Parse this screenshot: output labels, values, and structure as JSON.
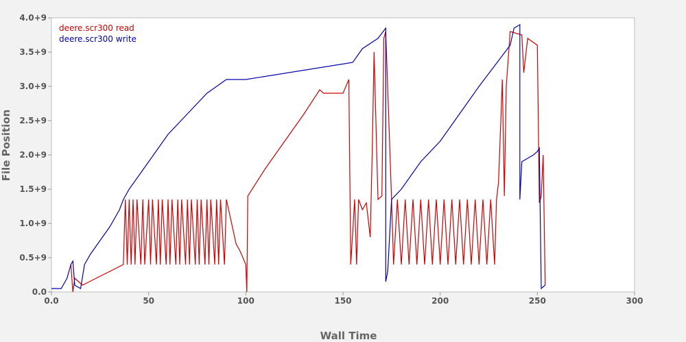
{
  "chart_data": {
    "type": "line",
    "title": "",
    "xlabel": "Wall Time",
    "ylabel": "File Position",
    "xlim": [
      0,
      300
    ],
    "ylim": [
      0,
      4000000000
    ],
    "x_ticks": [
      {
        "value": 0,
        "label": "0.0"
      },
      {
        "value": 50,
        "label": "50"
      },
      {
        "value": 100,
        "label": "100"
      },
      {
        "value": 150,
        "label": "150"
      },
      {
        "value": 200,
        "label": "200"
      },
      {
        "value": 250,
        "label": "250"
      },
      {
        "value": 300,
        "label": "300"
      }
    ],
    "y_ticks": [
      {
        "value": 0,
        "label": "0.0"
      },
      {
        "value": 500000000,
        "label": "0.5+9"
      },
      {
        "value": 1000000000,
        "label": "1.0+9"
      },
      {
        "value": 1500000000,
        "label": "1.5+9"
      },
      {
        "value": 2000000000,
        "label": "2.0+9"
      },
      {
        "value": 2500000000,
        "label": "2.5+9"
      },
      {
        "value": 3000000000,
        "label": "3.0+9"
      },
      {
        "value": 3500000000,
        "label": "3.5+9"
      },
      {
        "value": 4000000000,
        "label": "4.0+9"
      }
    ],
    "grid": false,
    "legend_position": "top-left",
    "series": [
      {
        "name": "deere.scr300 read",
        "color": "#cc0000",
        "points": [
          [
            10,
            400000000
          ],
          [
            11,
            0
          ],
          [
            12,
            200000000
          ],
          [
            16,
            100000000
          ],
          [
            37,
            400000000
          ],
          [
            38,
            1350000000
          ],
          [
            39,
            400000000
          ],
          [
            40,
            1350000000
          ],
          [
            41,
            400000000
          ],
          [
            42,
            1350000000
          ],
          [
            43,
            400000000
          ],
          [
            44,
            1350000000
          ],
          [
            46,
            400000000
          ],
          [
            47,
            1350000000
          ],
          [
            48,
            400000000
          ],
          [
            50,
            1350000000
          ],
          [
            51,
            400000000
          ],
          [
            52,
            1350000000
          ],
          [
            54,
            400000000
          ],
          [
            55,
            1350000000
          ],
          [
            56,
            400000000
          ],
          [
            57,
            1350000000
          ],
          [
            59,
            400000000
          ],
          [
            60,
            1350000000
          ],
          [
            61,
            400000000
          ],
          [
            62,
            1350000000
          ],
          [
            64,
            400000000
          ],
          [
            65,
            1350000000
          ],
          [
            66,
            400000000
          ],
          [
            67,
            1350000000
          ],
          [
            69,
            400000000
          ],
          [
            70,
            1350000000
          ],
          [
            71,
            400000000
          ],
          [
            72,
            1350000000
          ],
          [
            74,
            400000000
          ],
          [
            75,
            1350000000
          ],
          [
            76,
            400000000
          ],
          [
            77,
            1350000000
          ],
          [
            79,
            400000000
          ],
          [
            80,
            1350000000
          ],
          [
            81,
            400000000
          ],
          [
            82,
            1350000000
          ],
          [
            84,
            400000000
          ],
          [
            85,
            1350000000
          ],
          [
            86,
            400000000
          ],
          [
            87,
            1350000000
          ],
          [
            89,
            400000000
          ],
          [
            90,
            1350000000
          ],
          [
            95,
            700000000
          ],
          [
            97,
            600000000
          ],
          [
            100,
            400000000
          ],
          [
            100.5,
            0
          ],
          [
            101,
            1400000000
          ],
          [
            110,
            1800000000
          ],
          [
            120,
            2200000000
          ],
          [
            130,
            2600000000
          ],
          [
            138,
            2950000000
          ],
          [
            140,
            2900000000
          ],
          [
            150,
            2900000000
          ],
          [
            153,
            3100000000
          ],
          [
            154,
            400000000
          ],
          [
            156,
            1350000000
          ],
          [
            157,
            400000000
          ],
          [
            158,
            1350000000
          ],
          [
            160,
            1200000000
          ],
          [
            162,
            1300000000
          ],
          [
            164,
            800000000
          ],
          [
            165,
            2000000000
          ],
          [
            166,
            3500000000
          ],
          [
            168,
            1350000000
          ],
          [
            170,
            1400000000
          ],
          [
            171,
            3700000000
          ],
          [
            172,
            3800000000
          ],
          [
            175,
            1350000000
          ],
          [
            176,
            400000000
          ],
          [
            178,
            1350000000
          ],
          [
            180,
            400000000
          ],
          [
            182,
            1350000000
          ],
          [
            184,
            400000000
          ],
          [
            186,
            1350000000
          ],
          [
            188,
            400000000
          ],
          [
            190,
            1350000000
          ],
          [
            192,
            400000000
          ],
          [
            194,
            1350000000
          ],
          [
            196,
            400000000
          ],
          [
            198,
            1350000000
          ],
          [
            200,
            400000000
          ],
          [
            202,
            1350000000
          ],
          [
            204,
            400000000
          ],
          [
            206,
            1350000000
          ],
          [
            208,
            400000000
          ],
          [
            210,
            1350000000
          ],
          [
            212,
            400000000
          ],
          [
            214,
            1350000000
          ],
          [
            216,
            400000000
          ],
          [
            218,
            1350000000
          ],
          [
            220,
            400000000
          ],
          [
            222,
            1350000000
          ],
          [
            224,
            400000000
          ],
          [
            226,
            1350000000
          ],
          [
            228,
            400000000
          ],
          [
            229,
            1350000000
          ],
          [
            230,
            1600000000
          ],
          [
            232,
            3100000000
          ],
          [
            233,
            1400000000
          ],
          [
            234,
            3000000000
          ],
          [
            236,
            3800000000
          ],
          [
            242,
            3750000000
          ],
          [
            243,
            3200000000
          ],
          [
            245,
            3700000000
          ],
          [
            250,
            3600000000
          ],
          [
            251,
            1300000000
          ],
          [
            252,
            1400000000
          ],
          [
            253,
            2000000000
          ],
          [
            254,
            100000000
          ]
        ]
      },
      {
        "name": "deere.scr300 write",
        "color": "#0000aa",
        "points": [
          [
            0,
            50000000
          ],
          [
            5,
            50000000
          ],
          [
            8,
            200000000
          ],
          [
            10,
            400000000
          ],
          [
            11,
            450000000
          ],
          [
            12,
            100000000
          ],
          [
            15,
            50000000
          ],
          [
            17,
            400000000
          ],
          [
            20,
            550000000
          ],
          [
            25,
            750000000
          ],
          [
            30,
            950000000
          ],
          [
            35,
            1200000000
          ],
          [
            37,
            1350000000
          ],
          [
            40,
            1500000000
          ],
          [
            50,
            1900000000
          ],
          [
            60,
            2300000000
          ],
          [
            70,
            2600000000
          ],
          [
            80,
            2900000000
          ],
          [
            85,
            3000000000
          ],
          [
            90,
            3100000000
          ],
          [
            100,
            3100000000
          ],
          [
            155,
            3350000000
          ],
          [
            160,
            3550000000
          ],
          [
            168,
            3700000000
          ],
          [
            172,
            3850000000
          ],
          [
            172,
            150000000
          ],
          [
            173,
            300000000
          ],
          [
            175,
            1350000000
          ],
          [
            180,
            1500000000
          ],
          [
            190,
            1900000000
          ],
          [
            200,
            2200000000
          ],
          [
            210,
            2600000000
          ],
          [
            220,
            3000000000
          ],
          [
            228,
            3300000000
          ],
          [
            236,
            3600000000
          ],
          [
            238,
            3850000000
          ],
          [
            241,
            3900000000
          ],
          [
            241,
            1350000000
          ],
          [
            242,
            1900000000
          ],
          [
            248,
            2000000000
          ],
          [
            250,
            2050000000
          ],
          [
            251,
            2100000000
          ],
          [
            252,
            50000000
          ],
          [
            254,
            100000000
          ]
        ]
      }
    ]
  }
}
